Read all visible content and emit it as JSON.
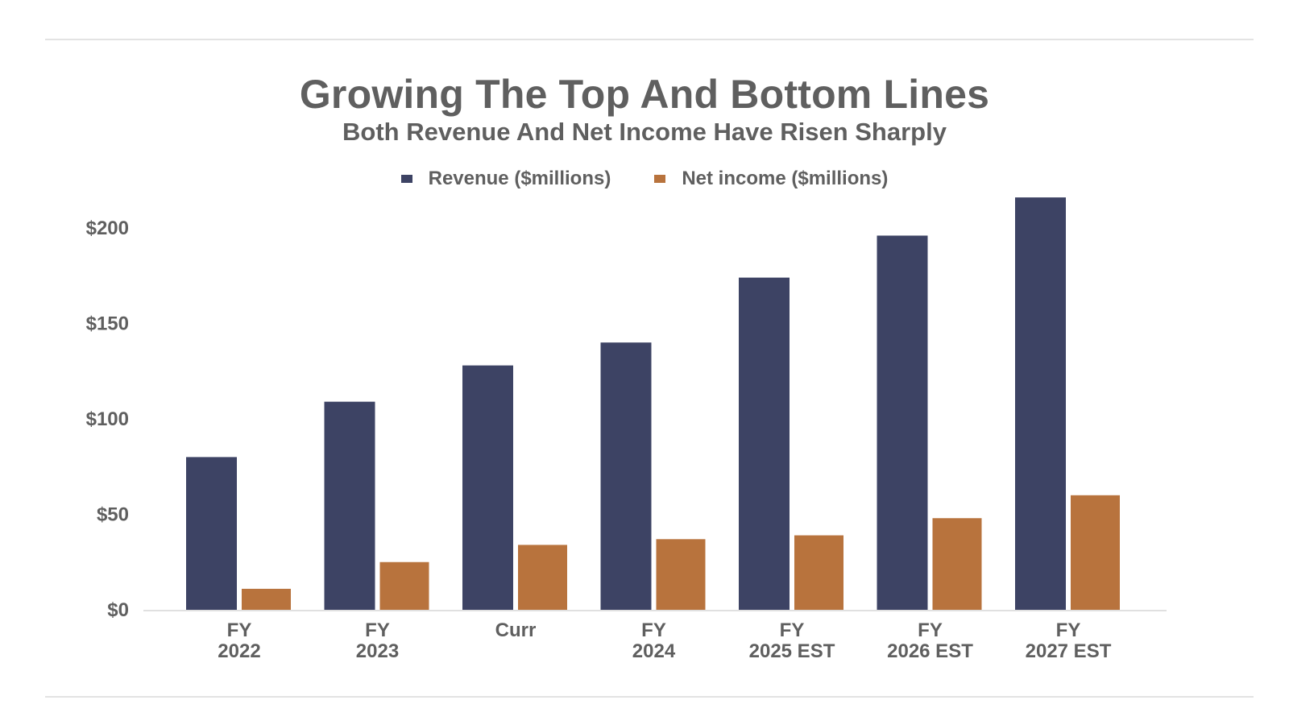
{
  "chart_data": {
    "type": "bar",
    "title": "Growing The Top And Bottom Lines",
    "subtitle": "Both Revenue And Net Income Have Risen Sharply",
    "categories": [
      [
        "FY",
        "2022"
      ],
      [
        "FY",
        "2023"
      ],
      [
        "Curr"
      ],
      [
        "FY",
        "2024"
      ],
      [
        "FY",
        "2025 EST"
      ],
      [
        "FY",
        "2026 EST"
      ],
      [
        "FY",
        "2027 EST"
      ]
    ],
    "series": [
      {
        "name": "Revenue ($millions)",
        "color": "#3d4364",
        "values": [
          80,
          109,
          128,
          140,
          174,
          196,
          216
        ]
      },
      {
        "name": "Net income ($millions)",
        "color": "#b8733d",
        "values": [
          11,
          25,
          34,
          37,
          39,
          48,
          60
        ]
      }
    ],
    "yticks": [
      "$0",
      "$50",
      "$100",
      "$150",
      "$200"
    ],
    "ytick_values": [
      0,
      50,
      100,
      150,
      200
    ],
    "ylim": [
      0,
      220
    ],
    "legend_position": "top-center",
    "grid": false
  }
}
